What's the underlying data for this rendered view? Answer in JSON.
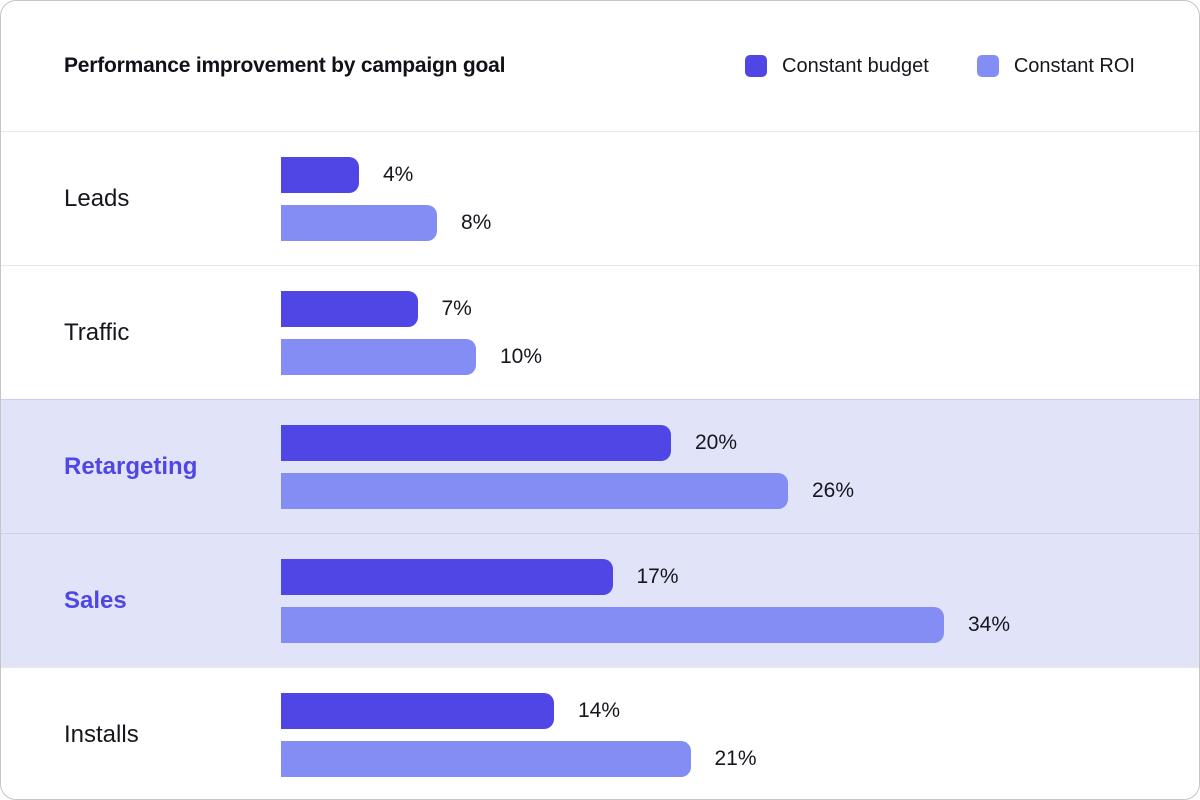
{
  "chart": {
    "title": "Performance improvement by campaign goal",
    "legend": [
      {
        "label": "Constant budget",
        "color": "#4F46E5"
      },
      {
        "label": "Constant ROI",
        "color": "#848DF4"
      }
    ],
    "rows": [
      {
        "label": "Leads",
        "budget": 4,
        "roi": 8,
        "budget_label": "4%",
        "roi_label": "8%",
        "highlighted": false
      },
      {
        "label": "Traffic",
        "budget": 7,
        "roi": 10,
        "budget_label": "7%",
        "roi_label": "10%",
        "highlighted": false
      },
      {
        "label": "Retargeting",
        "budget": 20,
        "roi": 26,
        "budget_label": "20%",
        "roi_label": "26%",
        "highlighted": true
      },
      {
        "label": "Sales",
        "budget": 17,
        "roi": 34,
        "budget_label": "17%",
        "roi_label": "34%",
        "highlighted": true
      },
      {
        "label": "Installs",
        "budget": 14,
        "roi": 21,
        "budget_label": "14%",
        "roi_label": "21%",
        "highlighted": false
      }
    ],
    "colors": {
      "constant_budget": "#4F46E5",
      "constant_roi": "#848DF4",
      "highlight_row_background": "#E1E4F9",
      "highlight_label_text": "#4F46E5"
    }
  },
  "chart_data": {
    "type": "bar",
    "orientation": "horizontal",
    "title": "Performance improvement by campaign goal",
    "categories": [
      "Leads",
      "Traffic",
      "Retargeting",
      "Sales",
      "Installs"
    ],
    "series": [
      {
        "name": "Constant budget",
        "values": [
          4,
          7,
          20,
          17,
          14
        ],
        "color": "#4F46E5"
      },
      {
        "name": "Constant ROI",
        "values": [
          8,
          10,
          26,
          34,
          21
        ],
        "color": "#848DF4"
      }
    ],
    "value_format": "percent",
    "data_labels": true,
    "highlighted_categories": [
      "Retargeting",
      "Sales"
    ],
    "legend_position": "top-right",
    "grid": false,
    "axes_visible": false,
    "xlim": [
      0,
      34
    ]
  }
}
